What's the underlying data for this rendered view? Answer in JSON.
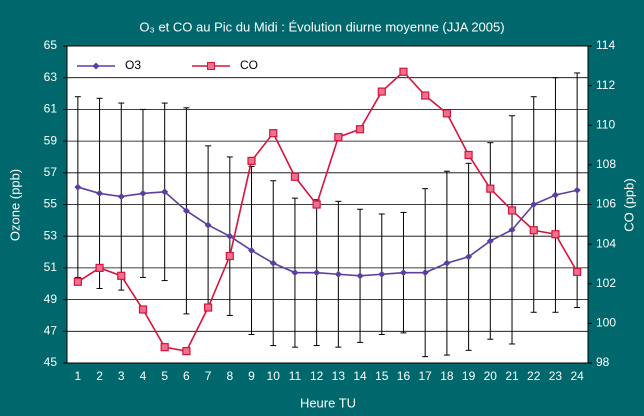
{
  "chart_data": {
    "type": "line",
    "title": "O₃ et CO au Pic du Midi : Évolution diurne moyenne (JJA 2005)",
    "x_label": "Heure TU",
    "y_label": "Ozone (ppb)",
    "y2_label": "CO (ppb)",
    "categories": [
      "1",
      "2",
      "3",
      "4",
      "5",
      "6",
      "7",
      "8",
      "9",
      "10",
      "11",
      "12",
      "13",
      "14",
      "15",
      "16",
      "17",
      "18",
      "19",
      "20",
      "21",
      "22",
      "23",
      "24"
    ],
    "ylim": [
      45,
      65
    ],
    "yticks": [
      45,
      47,
      49,
      51,
      53,
      55,
      57,
      59,
      61,
      63,
      65
    ],
    "y2lim": [
      98,
      114
    ],
    "y2ticks": [
      98,
      100,
      102,
      104,
      106,
      108,
      110,
      112,
      114
    ],
    "grid": true,
    "legend": "top-left",
    "series": [
      {
        "name": "O3",
        "color": "#5b3f9e",
        "values": [
          56.1,
          55.7,
          55.5,
          55.7,
          55.8,
          54.6,
          53.7,
          53.0,
          52.1,
          51.3,
          50.7,
          50.7,
          50.6,
          50.5,
          50.6,
          50.7,
          50.7,
          51.3,
          51.7,
          52.7,
          53.4,
          55.0,
          55.6,
          55.9
        ],
        "errors": [
          5.7,
          6.0,
          5.9,
          5.3,
          5.6,
          6.5,
          5.0,
          5.0,
          5.3,
          5.2,
          4.7,
          4.6,
          4.6,
          4.2,
          3.8,
          3.8,
          5.3,
          5.8,
          5.9,
          6.2,
          7.2,
          6.8,
          7.4,
          7.4
        ]
      },
      {
        "name": "CO",
        "color": "#d6143c",
        "axis": "y2",
        "values": [
          102.1,
          102.8,
          102.4,
          100.7,
          98.8,
          98.6,
          100.8,
          103.4,
          108.2,
          109.6,
          107.4,
          106.0,
          109.4,
          109.8,
          111.7,
          112.7,
          111.5,
          110.6,
          108.5,
          106.8,
          105.7,
          104.7,
          104.5,
          102.6
        ]
      }
    ]
  }
}
